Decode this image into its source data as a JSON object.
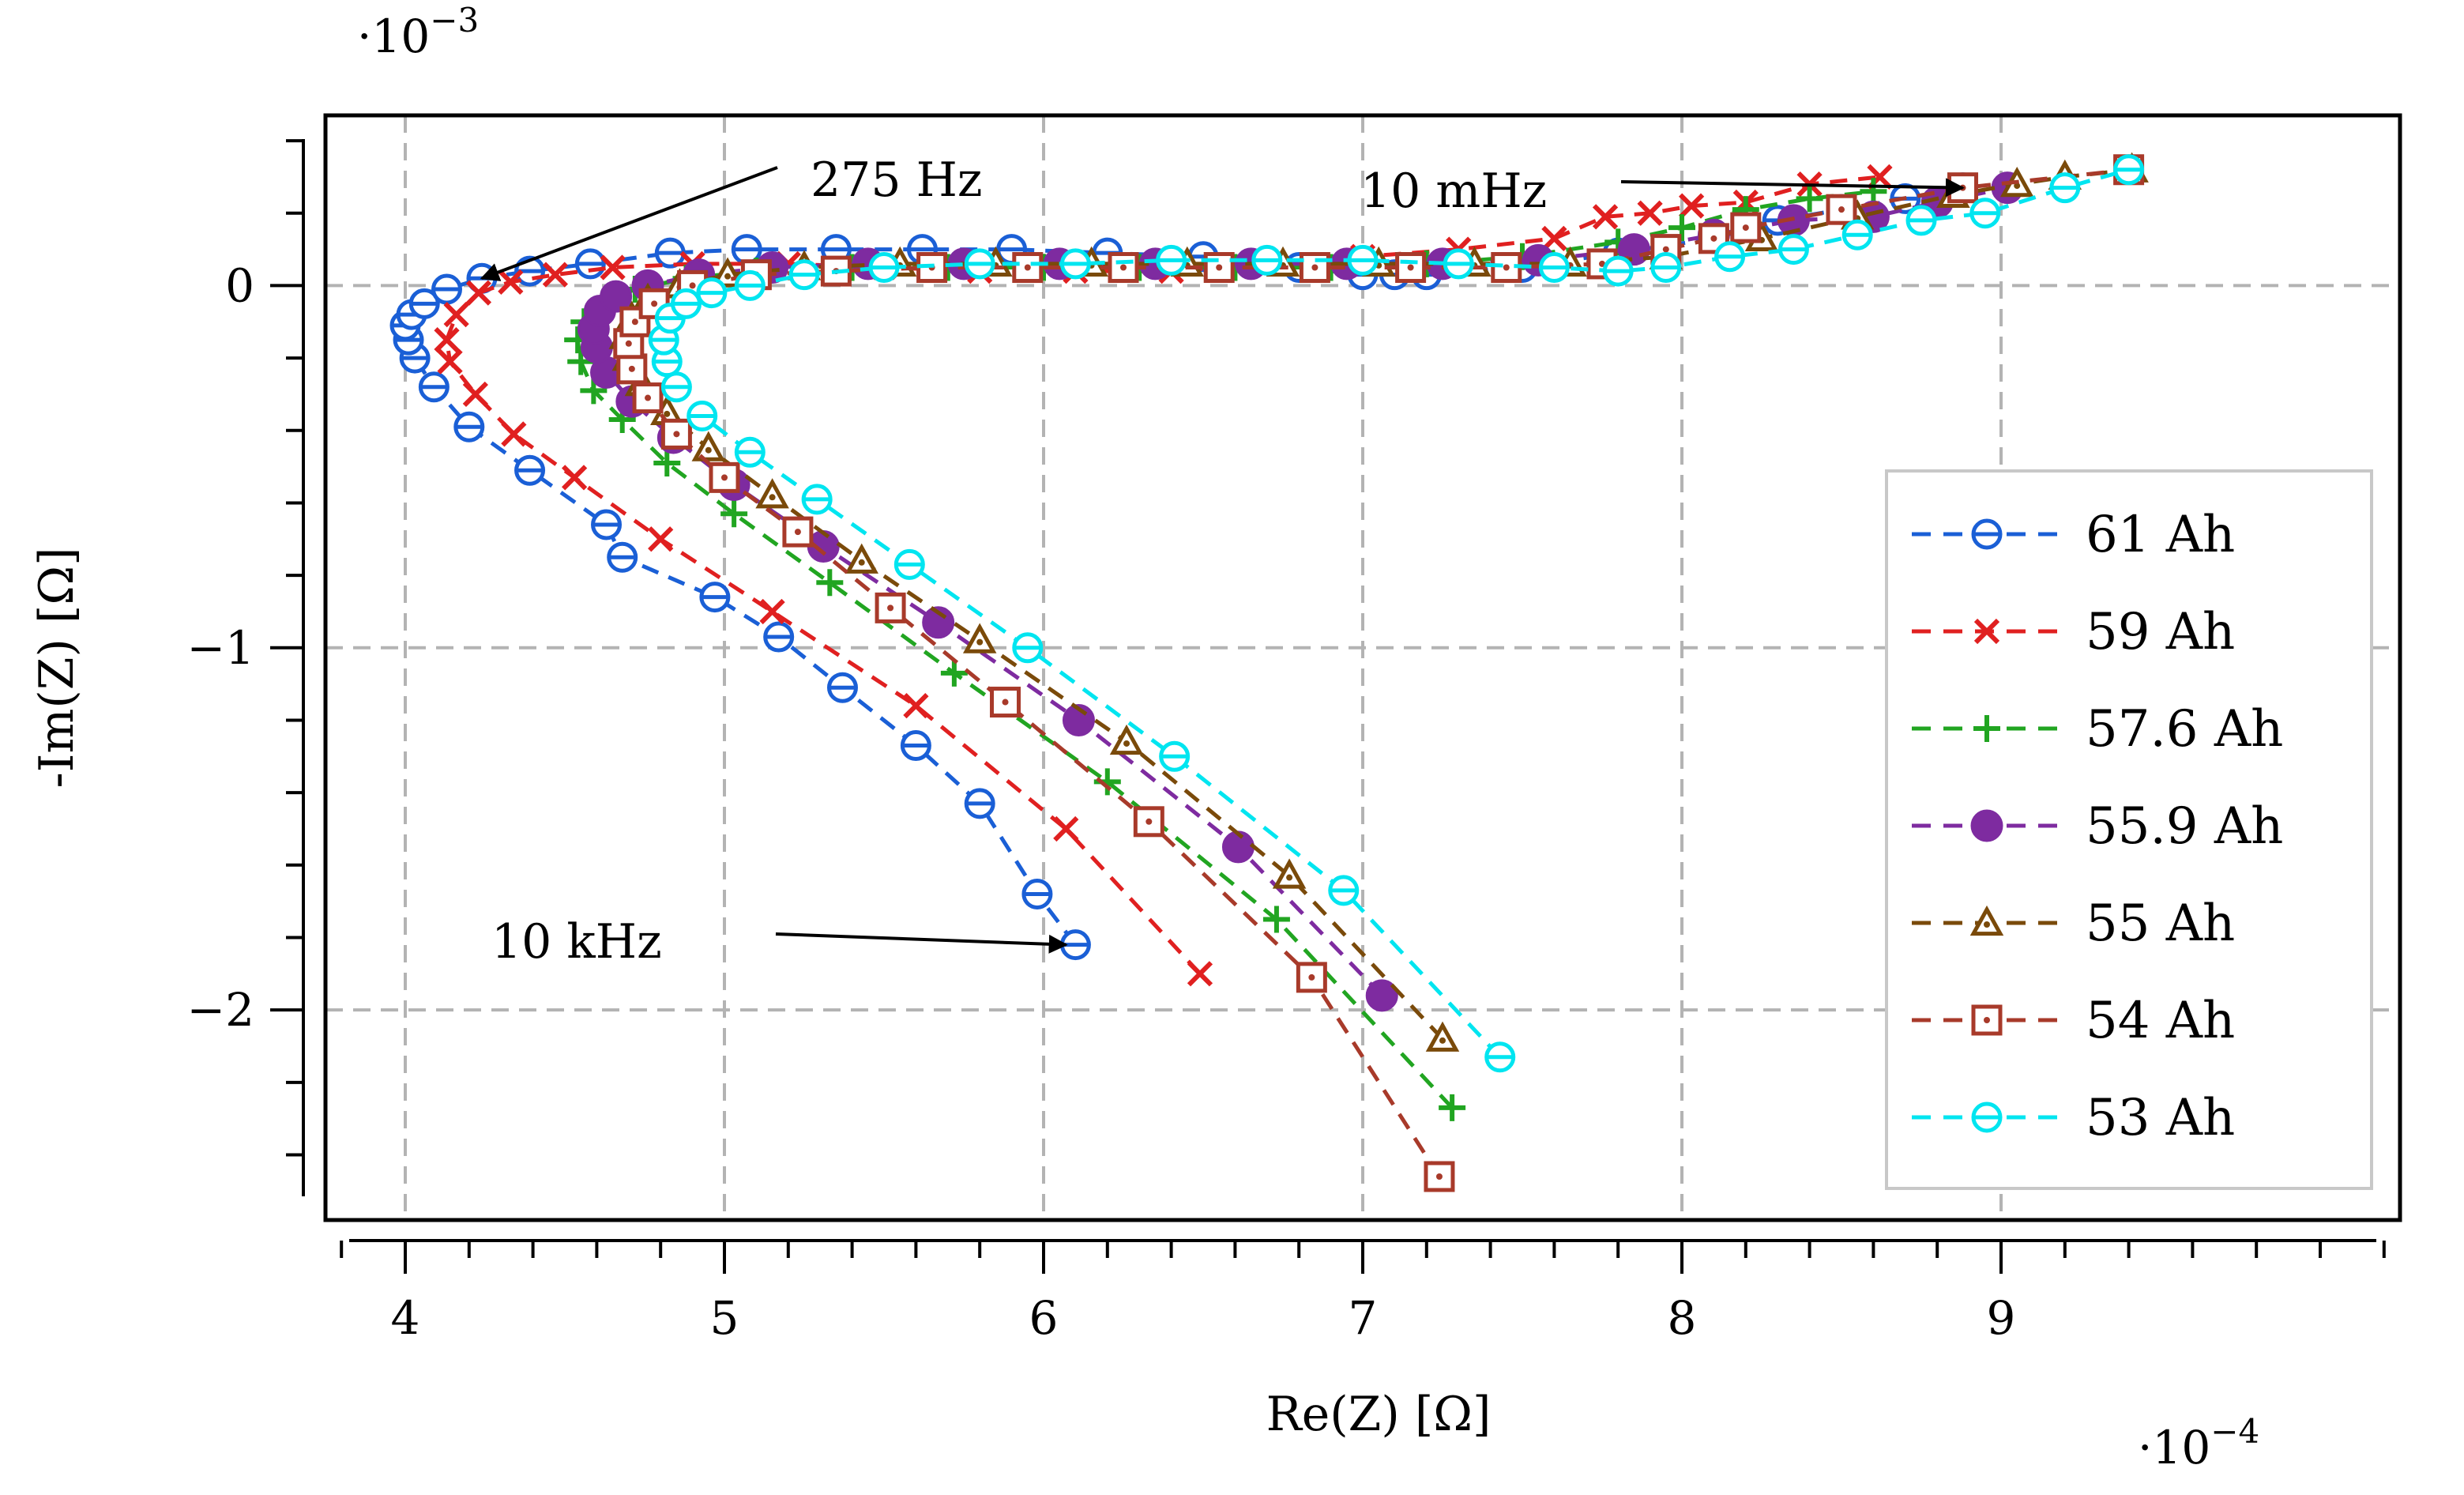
{
  "chart_data": {
    "type": "scatter",
    "title": "",
    "xlabel": "Re(Z) [Ω]",
    "ylabel": "-Im(Z) [Ω]",
    "x_scale_label": "·10",
    "x_scale_exp": "−4",
    "y_scale_label": "·10",
    "y_scale_exp": "−3",
    "xlim": [
      3.75,
      10.25
    ],
    "ylim": [
      -2.58,
      0.47
    ],
    "xticks": [
      4,
      5,
      6,
      7,
      8,
      9
    ],
    "xtick_labels": [
      "4",
      "5",
      "6",
      "7",
      "8",
      "9"
    ],
    "yticks": [
      0,
      -1,
      -2
    ],
    "ytick_labels": [
      "0",
      "−1",
      "−2"
    ],
    "grid": true,
    "legend_position": "right",
    "annotations": [
      {
        "text": "275 Hz",
        "point": [
          4.24,
          0.02
        ]
      },
      {
        "text": "10 mHz",
        "point": [
          8.88,
          0.27
        ]
      },
      {
        "text": "10 kHz",
        "point": [
          6.07,
          -1.82
        ]
      }
    ],
    "series": [
      {
        "name": "61 Ah",
        "color": "#1a5fd6",
        "marker": "circle-line",
        "x": [
          6.1,
          5.98,
          5.8,
          5.6,
          5.37,
          5.17,
          4.97,
          4.68,
          4.63,
          4.39,
          4.2,
          4.09,
          4.03,
          4.01,
          4.0,
          4.02,
          4.06,
          4.13,
          4.24,
          4.39,
          4.58,
          4.83,
          5.07,
          5.35,
          5.62,
          5.9,
          6.2,
          6.5,
          6.8,
          7.0,
          7.1,
          7.2,
          7.5,
          7.8,
          8.1,
          8.3,
          8.5,
          8.7,
          8.88
        ],
        "y": [
          -1.82,
          -1.68,
          -1.43,
          -1.27,
          -1.11,
          -0.97,
          -0.86,
          -0.75,
          -0.66,
          -0.51,
          -0.39,
          -0.28,
          -0.2,
          -0.15,
          -0.11,
          -0.08,
          -0.05,
          -0.01,
          0.02,
          0.04,
          0.06,
          0.09,
          0.1,
          0.1,
          0.1,
          0.1,
          0.09,
          0.08,
          0.05,
          0.03,
          0.03,
          0.03,
          0.05,
          0.09,
          0.13,
          0.18,
          0.21,
          0.24,
          0.27
        ]
      },
      {
        "name": "59 Ah",
        "color": "#e02020",
        "marker": "x",
        "x": [
          6.49,
          6.07,
          5.6,
          5.15,
          4.8,
          4.53,
          4.34,
          4.22,
          4.14,
          4.13,
          4.16,
          4.23,
          4.33,
          4.47,
          4.65,
          4.9,
          5.2,
          5.5,
          5.8,
          6.1,
          6.4,
          6.7,
          7.0,
          7.3,
          7.6,
          7.76,
          7.9,
          8.03,
          8.2,
          8.4,
          8.62
        ],
        "y": [
          -1.9,
          -1.5,
          -1.16,
          -0.9,
          -0.7,
          -0.53,
          -0.41,
          -0.3,
          -0.21,
          -0.15,
          -0.08,
          -0.02,
          0.01,
          0.03,
          0.05,
          0.06,
          0.06,
          0.05,
          0.04,
          0.04,
          0.04,
          0.06,
          0.08,
          0.1,
          0.13,
          0.19,
          0.2,
          0.22,
          0.23,
          0.28,
          0.3
        ]
      },
      {
        "name": "57.6 Ah",
        "color": "#21a521",
        "marker": "plus",
        "x": [
          7.28,
          6.73,
          6.2,
          5.72,
          5.33,
          5.03,
          4.82,
          4.68,
          4.59,
          4.55,
          4.54,
          4.56,
          4.62,
          4.72,
          4.88,
          5.1,
          5.4,
          5.7,
          6.0,
          6.3,
          6.6,
          6.9,
          7.2,
          7.5,
          7.8,
          8.0,
          8.2,
          8.4,
          8.6
        ],
        "y": [
          -2.27,
          -1.75,
          -1.37,
          -1.07,
          -0.82,
          -0.63,
          -0.49,
          -0.37,
          -0.29,
          -0.21,
          -0.15,
          -0.1,
          -0.05,
          -0.01,
          0.02,
          0.04,
          0.05,
          0.05,
          0.05,
          0.05,
          0.05,
          0.05,
          0.06,
          0.08,
          0.12,
          0.16,
          0.21,
          0.24,
          0.26
        ]
      },
      {
        "name": "55.9 Ah",
        "color": "#7e2ba0",
        "marker": "filled-circle",
        "x": [
          7.06,
          6.61,
          6.11,
          5.67,
          5.31,
          5.03,
          4.84,
          4.71,
          4.63,
          4.6,
          4.59,
          4.61,
          4.66,
          4.76,
          4.92,
          5.15,
          5.45,
          5.75,
          6.05,
          6.35,
          6.65,
          6.95,
          7.25,
          7.55,
          7.85,
          8.1,
          8.35,
          8.6,
          8.8,
          9.02
        ],
        "y": [
          -1.96,
          -1.55,
          -1.2,
          -0.93,
          -0.72,
          -0.55,
          -0.42,
          -0.32,
          -0.24,
          -0.17,
          -0.12,
          -0.07,
          -0.03,
          0.0,
          0.03,
          0.05,
          0.06,
          0.06,
          0.06,
          0.06,
          0.06,
          0.06,
          0.06,
          0.07,
          0.1,
          0.14,
          0.18,
          0.19,
          0.23,
          0.27
        ]
      },
      {
        "name": "55 Ah",
        "color": "#7a4a0a",
        "marker": "triangle",
        "x": [
          7.25,
          6.77,
          6.26,
          5.8,
          5.43,
          5.15,
          4.95,
          4.82,
          4.74,
          4.7,
          4.69,
          4.71,
          4.76,
          4.86,
          5.01,
          5.25,
          5.55,
          5.85,
          6.15,
          6.45,
          6.75,
          7.05,
          7.35,
          7.65,
          7.95,
          8.25,
          8.55,
          8.85,
          9.05,
          9.2,
          9.41
        ],
        "y": [
          -2.08,
          -1.63,
          -1.26,
          -0.98,
          -0.76,
          -0.58,
          -0.45,
          -0.35,
          -0.27,
          -0.2,
          -0.14,
          -0.09,
          -0.04,
          0.0,
          0.03,
          0.05,
          0.06,
          0.06,
          0.06,
          0.06,
          0.06,
          0.06,
          0.06,
          0.06,
          0.08,
          0.13,
          0.19,
          0.25,
          0.28,
          0.3,
          0.32
        ]
      },
      {
        "name": "54 Ah",
        "color": "#a83a2a",
        "marker": "square",
        "x": [
          7.24,
          6.84,
          6.33,
          5.88,
          5.52,
          5.23,
          5.0,
          4.85,
          4.76,
          4.71,
          4.7,
          4.72,
          4.78,
          4.9,
          5.1,
          5.35,
          5.65,
          5.95,
          6.25,
          6.55,
          6.85,
          7.15,
          7.45,
          7.75,
          7.95,
          8.1,
          8.2,
          8.5,
          8.88,
          9.4
        ],
        "y": [
          -2.46,
          -1.91,
          -1.48,
          -1.15,
          -0.89,
          -0.68,
          -0.53,
          -0.41,
          -0.31,
          -0.23,
          -0.16,
          -0.1,
          -0.05,
          0.0,
          0.03,
          0.04,
          0.05,
          0.05,
          0.05,
          0.05,
          0.05,
          0.05,
          0.05,
          0.06,
          0.1,
          0.13,
          0.16,
          0.21,
          0.27,
          0.32
        ]
      },
      {
        "name": "53 Ah",
        "color": "#00e5f0",
        "marker": "circle-line",
        "x": [
          7.43,
          6.94,
          6.41,
          5.95,
          5.58,
          5.29,
          5.08,
          4.93,
          4.85,
          4.82,
          4.81,
          4.83,
          4.88,
          4.96,
          5.08,
          5.25,
          5.5,
          5.8,
          6.1,
          6.4,
          6.7,
          7.0,
          7.3,
          7.6,
          7.8,
          7.95,
          8.15,
          8.35,
          8.55,
          8.75,
          8.95,
          9.2,
          9.4
        ],
        "y": [
          -2.13,
          -1.67,
          -1.3,
          -1.0,
          -0.77,
          -0.59,
          -0.46,
          -0.36,
          -0.28,
          -0.21,
          -0.15,
          -0.09,
          -0.05,
          -0.02,
          0.0,
          0.03,
          0.05,
          0.06,
          0.06,
          0.07,
          0.07,
          0.07,
          0.06,
          0.05,
          0.04,
          0.05,
          0.08,
          0.1,
          0.14,
          0.18,
          0.2,
          0.27,
          0.32
        ]
      }
    ]
  }
}
